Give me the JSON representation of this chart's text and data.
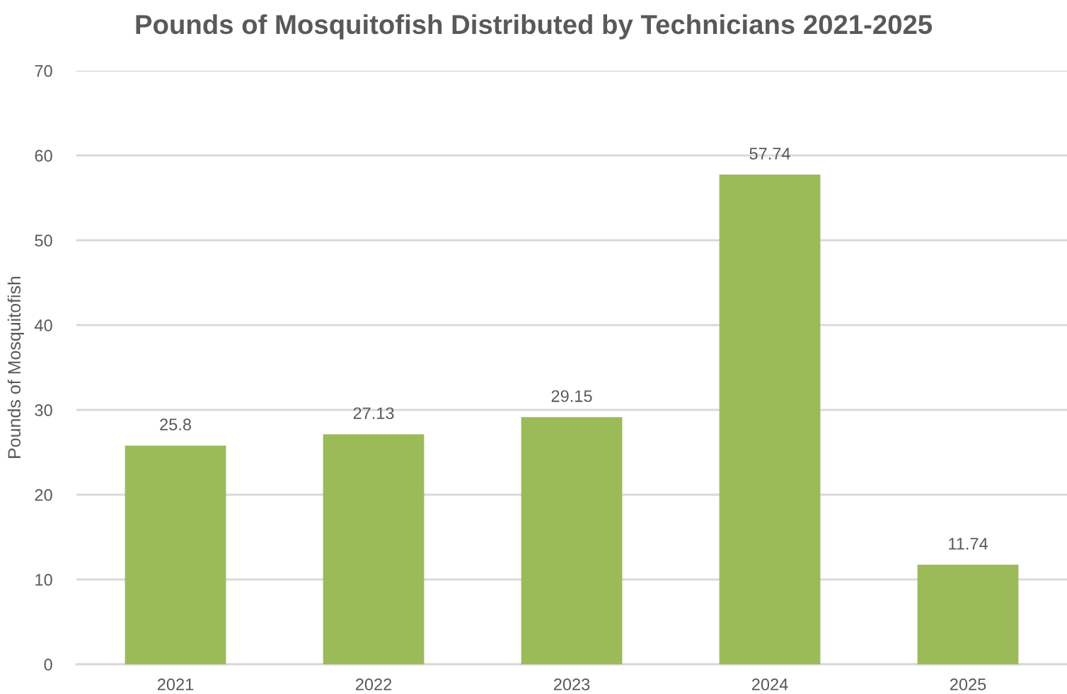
{
  "chart_data": {
    "type": "bar",
    "title": "Pounds of Mosquitofish Distributed by Technicians 2021-2025",
    "ylabel": "Pounds of Mosquitofish",
    "categories": [
      "2021",
      "2022",
      "2023",
      "2024",
      "2025"
    ],
    "values": [
      25.8,
      27.13,
      29.15,
      57.74,
      11.74
    ],
    "color": "#9bbb59",
    "ylim": [
      0,
      70
    ],
    "yticks": [
      0,
      10,
      20,
      30,
      40,
      50,
      60,
      70
    ],
    "grid": "y",
    "data_labels": true,
    "legend": false
  }
}
